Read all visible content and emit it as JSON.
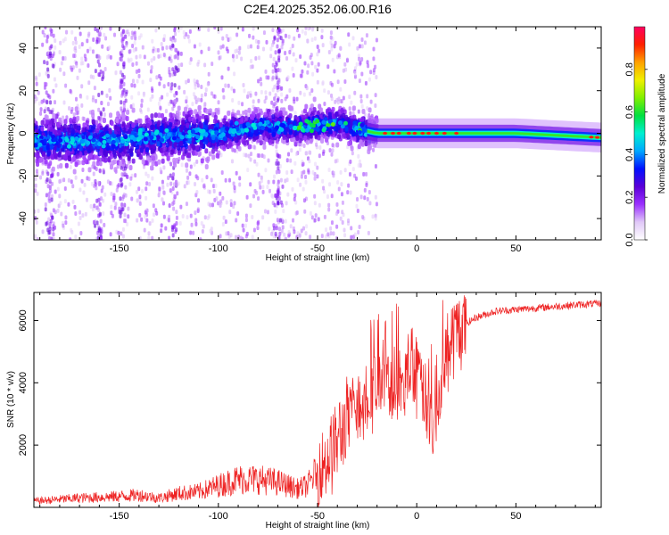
{
  "chart_data": [
    {
      "type": "heatmap",
      "title": "C2E4.2025.352.06.00.R16",
      "xlabel": "Height of straight line (km)",
      "ylabel": "Frequency (Hz)",
      "xlim": [
        -193,
        93
      ],
      "ylim": [
        -50,
        50
      ],
      "xticks": [
        -150,
        -100,
        -50,
        0,
        50
      ],
      "yticks": [
        -40,
        -20,
        0,
        20,
        40
      ],
      "colorbar": {
        "label": "Normalized spectral amplitude",
        "range": [
          0,
          1
        ],
        "ticks": [
          0.0,
          0.2,
          0.4,
          0.6,
          0.8
        ],
        "tick_labels": [
          "0.0",
          "0.2",
          "0.4",
          "0.6",
          "0.8"
        ],
        "colors": [
          "#ffffff",
          "#e0c8f8",
          "#9b30ff",
          "#5a00d8",
          "#0010ff",
          "#00a8ff",
          "#00f0d0",
          "#00e040",
          "#80f000",
          "#f0f000",
          "#ffa000",
          "#ff2000",
          "#ff0060"
        ]
      },
      "ridge": {
        "description": "Strong ridge near 0 Hz; scattered signal for heights below -30 km, narrow high-amplitude line above -20 km",
        "center_freq_points": [
          [
            -190,
            -4
          ],
          [
            -150,
            -3
          ],
          [
            -120,
            -1
          ],
          [
            -100,
            0
          ],
          [
            -80,
            3
          ],
          [
            -60,
            3
          ],
          [
            -40,
            5
          ],
          [
            -30,
            2
          ],
          [
            -20,
            0
          ],
          [
            0,
            0
          ],
          [
            50,
            0
          ],
          [
            93,
            -2
          ]
        ]
      }
    },
    {
      "type": "line",
      "xlabel": "Height of straight line (km)",
      "ylabel": "SNR (10 * v/v)",
      "xlim": [
        -193,
        93
      ],
      "ylim": [
        0,
        6900
      ],
      "xticks": [
        -150,
        -100,
        -50,
        0,
        50
      ],
      "yticks": [
        2000,
        4000,
        6000
      ],
      "series": [
        {
          "name": "SNR",
          "color": "#ee2222",
          "envelope_points": [
            [
              -193,
              200
            ],
            [
              -170,
              300
            ],
            [
              -150,
              350
            ],
            [
              -140,
              400
            ],
            [
              -130,
              300
            ],
            [
              -120,
              450
            ],
            [
              -110,
              500
            ],
            [
              -100,
              700
            ],
            [
              -90,
              900
            ],
            [
              -80,
              900
            ],
            [
              -70,
              800
            ],
            [
              -60,
              600
            ],
            [
              -55,
              700
            ],
            [
              -50,
              1200
            ],
            [
              -45,
              1600
            ],
            [
              -40,
              2100
            ],
            [
              -35,
              2800
            ],
            [
              -30,
              3300
            ],
            [
              -25,
              3700
            ],
            [
              -20,
              3900
            ],
            [
              -15,
              4100
            ],
            [
              -10,
              3900
            ],
            [
              -5,
              4100
            ],
            [
              0,
              4300
            ],
            [
              5,
              3400
            ],
            [
              8,
              2500
            ],
            [
              10,
              3600
            ],
            [
              15,
              4800
            ],
            [
              20,
              5600
            ],
            [
              25,
              5900
            ],
            [
              30,
              6100
            ],
            [
              40,
              6300
            ],
            [
              50,
              6350
            ],
            [
              60,
              6400
            ],
            [
              70,
              6450
            ],
            [
              80,
              6500
            ],
            [
              93,
              6550
            ]
          ]
        }
      ]
    }
  ]
}
